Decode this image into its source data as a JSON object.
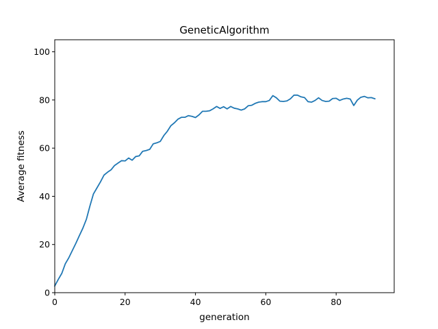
{
  "chart_data": {
    "type": "line",
    "title": "GeneticAlgorithm",
    "xlabel": "generation",
    "ylabel": "Average fitness",
    "xlim": [
      0,
      96.5
    ],
    "ylim": [
      0,
      105
    ],
    "xticks": [
      0,
      20,
      40,
      60,
      80
    ],
    "yticks": [
      0,
      20,
      40,
      60,
      80,
      100
    ],
    "grid": false,
    "series": [
      {
        "color": "#1f77b4",
        "x": [
          0,
          1,
          2,
          3,
          4,
          5,
          6,
          7,
          8,
          9,
          10,
          11,
          12,
          13,
          14,
          15,
          16,
          17,
          18,
          19,
          20,
          21,
          22,
          23,
          24,
          25,
          26,
          27,
          28,
          29,
          30,
          31,
          32,
          33,
          34,
          35,
          36,
          37,
          38,
          39,
          40,
          41,
          42,
          43,
          44,
          45,
          46,
          47,
          48,
          49,
          50,
          51,
          52,
          53,
          54,
          55,
          56,
          57,
          58,
          59,
          60,
          61,
          62,
          63,
          64,
          65,
          66,
          67,
          68,
          69,
          70,
          71,
          72,
          73,
          74,
          75,
          76,
          77,
          78,
          79,
          80,
          81,
          82,
          83,
          84,
          85,
          86,
          87,
          88,
          89,
          90,
          91
        ],
        "y": [
          2.8,
          5.5,
          8,
          12,
          14.5,
          17.5,
          20.5,
          23.7,
          26.8,
          30.5,
          36,
          41,
          43.5,
          46,
          48.8,
          50,
          51,
          52.8,
          53.8,
          54.8,
          54.7,
          55.9,
          55,
          56.5,
          56.8,
          58.7,
          59,
          59.5,
          61.8,
          62.2,
          62.8,
          65.2,
          67,
          69.3,
          70.5,
          72,
          72.8,
          72.8,
          73.5,
          73.2,
          72.7,
          73.8,
          75.3,
          75.3,
          75.5,
          76.3,
          77.3,
          76.5,
          77.2,
          76.3,
          77.3,
          76.6,
          76.3,
          75.8,
          76.3,
          77.6,
          77.8,
          78.6,
          79.1,
          79.3,
          79.3,
          79.8,
          81.8,
          80.9,
          79.5,
          79.4,
          79.6,
          80.5,
          82,
          82,
          81.3,
          81,
          79.3,
          79.1,
          79.8,
          80.9,
          79.8,
          79.4,
          79.5,
          80.6,
          80.7,
          79.8,
          80.4,
          80.7,
          80.4,
          77.7,
          79.9,
          81.1,
          81.5,
          80.9,
          81,
          80.5
        ]
      }
    ]
  }
}
